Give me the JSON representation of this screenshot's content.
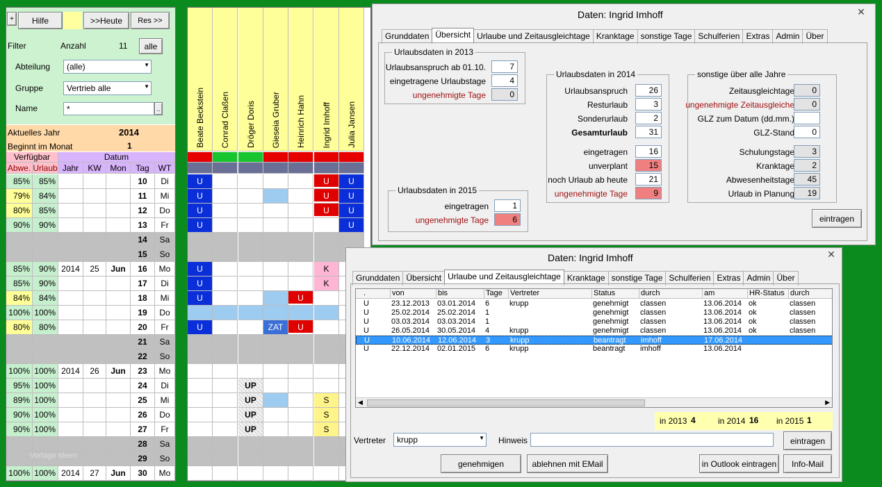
{
  "topbar": {
    "plus": "+",
    "hilfe": "Hilfe",
    "heute": ">>Heute",
    "res": "Res >>"
  },
  "filter": {
    "label": "Filter",
    "anzahl_label": "Anzahl",
    "anzahl": "11",
    "alle": "alle",
    "abteilung_label": "Abteilung",
    "abteilung": "(alle)",
    "gruppe_label": "Gruppe",
    "gruppe": "Vertrieb alle",
    "name_label": "Name",
    "name": "*"
  },
  "year": {
    "label": "Aktuelles Jahr",
    "value": "2014",
    "month_label": "Beginnt im Monat",
    "month": "1"
  },
  "headers": {
    "verfuegbar": "Verfügbar",
    "datum": "Datum",
    "abwe": "Abwe.",
    "urlaub": "Urlaub",
    "jahr": "Jahr",
    "kw": "KW",
    "mon": "Mon",
    "tag": "Tag",
    "wt": "WT"
  },
  "employees": [
    "Beate Beckstein",
    "Conrad Claßen",
    "Dröger Doris",
    "Gieseia Gruber",
    "Heinrich Hahn",
    "Ingrid Imhoff",
    "Julia Jansen"
  ],
  "rows": [
    {
      "a": "85%",
      "u": "85%",
      "jahr": "",
      "kw": "",
      "mon": "",
      "tag": "10",
      "wt": "Di",
      "c": [
        "U",
        "",
        "",
        "",
        "",
        "U",
        "U"
      ]
    },
    {
      "a": "79%",
      "u": "84%",
      "jahr": "",
      "kw": "",
      "mon": "",
      "tag": "11",
      "wt": "Mi",
      "c": [
        "U",
        "",
        "",
        "LB",
        "",
        "U",
        "U"
      ]
    },
    {
      "a": "80%",
      "u": "85%",
      "jahr": "",
      "kw": "",
      "mon": "",
      "tag": "12",
      "wt": "Do",
      "c": [
        "U",
        "",
        "",
        "",
        "",
        "U",
        "U"
      ]
    },
    {
      "a": "90%",
      "u": "90%",
      "jahr": "",
      "kw": "",
      "mon": "",
      "tag": "13",
      "wt": "Fr",
      "c": [
        "U",
        "",
        "",
        "",
        "",
        "",
        "U"
      ]
    },
    {
      "a": "",
      "u": "",
      "jahr": "",
      "kw": "",
      "mon": "",
      "tag": "14",
      "wt": "Sa",
      "we": true
    },
    {
      "a": "",
      "u": "",
      "jahr": "",
      "kw": "",
      "mon": "",
      "tag": "15",
      "wt": "So",
      "we": true
    },
    {
      "a": "85%",
      "u": "90%",
      "jahr": "2014",
      "kw": "25",
      "mon": "Jun",
      "tag": "16",
      "wt": "Mo",
      "c": [
        "U",
        "",
        "",
        "",
        "",
        "K",
        ""
      ]
    },
    {
      "a": "85%",
      "u": "90%",
      "jahr": "",
      "kw": "",
      "mon": "",
      "tag": "17",
      "wt": "Di",
      "c": [
        "U",
        "",
        "",
        "",
        "",
        "K",
        ""
      ]
    },
    {
      "a": "84%",
      "u": "84%",
      "jahr": "",
      "kw": "",
      "mon": "",
      "tag": "18",
      "wt": "Mi",
      "c": [
        "U",
        "",
        "",
        "LB",
        "U",
        "",
        ""
      ]
    },
    {
      "a": "100%",
      "u": "100%",
      "jahr": "",
      "kw": "",
      "mon": "",
      "tag": "19",
      "wt": "Do",
      "c": [
        "LB",
        "LB",
        "LB",
        "LB",
        "LB",
        "LB",
        ""
      ]
    },
    {
      "a": "80%",
      "u": "80%",
      "jahr": "",
      "kw": "",
      "mon": "",
      "tag": "20",
      "wt": "Fr",
      "c": [
        "U",
        "",
        "",
        "ZAT",
        "U",
        "",
        ""
      ]
    },
    {
      "a": "",
      "u": "",
      "jahr": "",
      "kw": "",
      "mon": "",
      "tag": "21",
      "wt": "Sa",
      "we": true
    },
    {
      "a": "",
      "u": "",
      "jahr": "",
      "kw": "",
      "mon": "",
      "tag": "22",
      "wt": "So",
      "we": true
    },
    {
      "a": "100%",
      "u": "100%",
      "jahr": "2014",
      "kw": "26",
      "mon": "Jun",
      "tag": "23",
      "wt": "Mo",
      "c": [
        "",
        "",
        "",
        "",
        "",
        "",
        ""
      ]
    },
    {
      "a": "95%",
      "u": "100%",
      "jahr": "",
      "kw": "",
      "mon": "",
      "tag": "24",
      "wt": "Di",
      "c": [
        "",
        "",
        "UP",
        "",
        "",
        "",
        ""
      ]
    },
    {
      "a": "89%",
      "u": "100%",
      "jahr": "",
      "kw": "",
      "mon": "",
      "tag": "25",
      "wt": "Mi",
      "c": [
        "",
        "",
        "UP",
        "LB",
        "",
        "S",
        ""
      ]
    },
    {
      "a": "90%",
      "u": "100%",
      "jahr": "",
      "kw": "",
      "mon": "",
      "tag": "26",
      "wt": "Do",
      "c": [
        "",
        "",
        "UP",
        "",
        "",
        "S",
        ""
      ]
    },
    {
      "a": "90%",
      "u": "100%",
      "jahr": "",
      "kw": "",
      "mon": "",
      "tag": "27",
      "wt": "Fr",
      "c": [
        "",
        "",
        "UP",
        "",
        "",
        "S",
        ""
      ]
    },
    {
      "a": "",
      "u": "",
      "jahr": "",
      "kw": "",
      "mon": "",
      "tag": "28",
      "wt": "Sa",
      "we": true
    },
    {
      "a": "",
      "u": "",
      "jahr": "",
      "kw": "",
      "mon": "",
      "tag": "29",
      "wt": "So",
      "we": true
    },
    {
      "a": "100%",
      "u": "100%",
      "jahr": "2014",
      "kw": "27",
      "mon": "Jun",
      "tag": "30",
      "wt": "Mo",
      "c": [
        "",
        "",
        "",
        "",
        "",
        "",
        ""
      ]
    }
  ],
  "watermark": "Vorlage Ideen",
  "dlg1": {
    "title": "Daten: Ingrid Imhoff",
    "tabs": [
      "Grunddaten",
      "Übersicht",
      "Urlaube und Zeitausgleichtage",
      "Kranktage",
      "sonstige Tage",
      "Schulferien",
      "Extras",
      "Admin",
      "Über"
    ],
    "g2013": {
      "title": "Urlaubsdaten in 2013",
      "r1": "Urlaubsanspruch ab 01.10.",
      "v1": "7",
      "r2": "eingetragene Urlaubstage",
      "v2": "4",
      "r3": "ungenehmigte Tage",
      "v3": "0"
    },
    "g2015": {
      "title": "Urlaubsdaten in 2015",
      "r1": "eingetragen",
      "v1": "1",
      "r2": "ungenehmigte Tage",
      "v2": "6"
    },
    "g2014": {
      "title": "Urlaubsdaten in 2014",
      "r1": "Urlaubsanspruch",
      "v1": "26",
      "r2": "Resturlaub",
      "v2": "3",
      "r3": "Sonderurlaub",
      "v3": "2",
      "r4": "Gesamturlaub",
      "v4": "31",
      "r5": "eingetragen",
      "v5": "16",
      "r6": "unverplant",
      "v6": "15",
      "r7": "noch Urlaub ab heute",
      "v7": "21",
      "r8": "ungenehmigte Tage",
      "v8": "9"
    },
    "gsonst": {
      "title": "sonstige über alle Jahre",
      "r1": "Zeitausgleichtage",
      "v1": "0",
      "r2": "ungenehmigte Zeitausgleiche",
      "v2": "0",
      "r3": "GLZ zum Datum (dd.mm.)",
      "v3": "",
      "r4": "GLZ-Stand",
      "v4": "0",
      "r5": "Schulungstage",
      "v5": "3",
      "r6": "Kranktage",
      "v6": "2",
      "r7": "Abwesenheitstage",
      "v7": "45",
      "r8": "Urlaub in Planung",
      "v8": "19"
    },
    "eintragen": "eintragen"
  },
  "dlg2": {
    "title": "Daten: Ingrid Imhoff",
    "tabs": [
      "Grunddaten",
      "Übersicht",
      "Urlaube und Zeitausgleichtage",
      "Kranktage",
      "sonstige Tage",
      "Schulferien",
      "Extras",
      "Admin",
      "Über"
    ],
    "cols": [
      ".",
      "von",
      "bis",
      "Tage",
      "Vertreter",
      "Status",
      "durch",
      "am",
      "HR-Status",
      "durch"
    ],
    "rows": [
      [
        ".",
        "",
        "",
        "",
        "",
        "",
        "",
        "",
        "",
        ""
      ],
      [
        "U",
        "23.12.2013",
        "03.01.2014",
        "6",
        "krupp",
        "genehmigt",
        "classen",
        "13.06.2014",
        "ok",
        "classen"
      ],
      [
        "U",
        "25.02.2014",
        "25.02.2014",
        "1",
        "",
        "genehmigt",
        "classen",
        "13.06.2014",
        "ok",
        "classen"
      ],
      [
        "U",
        "03.03.2014",
        "03.03.2014",
        "1",
        "",
        "genehmigt",
        "classen",
        "13.06.2014",
        "ok",
        "classen"
      ],
      [
        "U",
        "26.05.2014",
        "30.05.2014",
        "4",
        "krupp",
        "genehmigt",
        "classen",
        "13.06.2014",
        "ok",
        "classen"
      ],
      [
        "U",
        "10.06.2014",
        "12.06.2014",
        "3",
        "krupp",
        "beantragt",
        "imhoff",
        "17.06.2014",
        "",
        ""
      ],
      [
        "U",
        "22.12.2014",
        "02.01.2015",
        "6",
        "krupp",
        "beantragt",
        "imhoff",
        "13.06.2014",
        "",
        ""
      ]
    ],
    "sum": {
      "l2013": "in 2013",
      "v2013": "4",
      "l2014": "in 2014",
      "v2014": "16",
      "l2015": "in 2015",
      "v2015": "1"
    },
    "vertreter_label": "Vertreter",
    "vertreter": "krupp",
    "hinweis_label": "Hinweis",
    "hinweis": "",
    "eintragen": "eintragen",
    "genehmigen": "genehmigen",
    "ablehnen": "ablehnen mit EMail",
    "outlook": "in Outlook eintragen",
    "infomail": "Info-Mail"
  }
}
